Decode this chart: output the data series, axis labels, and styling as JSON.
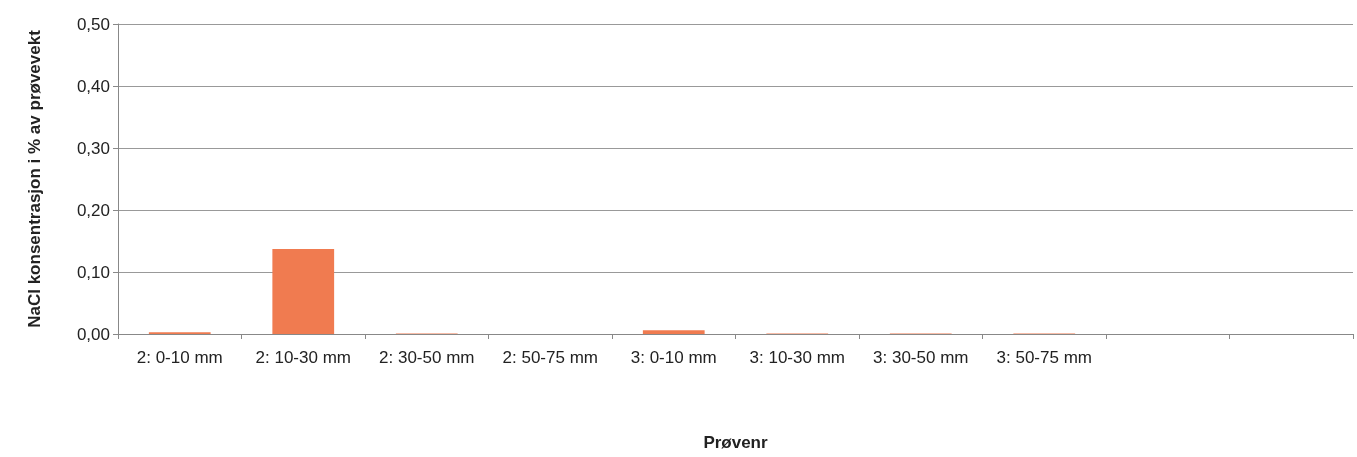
{
  "chart_data": {
    "type": "bar",
    "xlabel": "Prøvenr",
    "ylabel": "NaCl konsentrasjon i % av prøvevekt",
    "categories": [
      "2: 0-10 mm",
      "2: 10-30 mm",
      "2: 30-50 mm",
      "2: 50-75 mm",
      "3: 0-10 mm",
      "3: 10-30 mm",
      "3: 30-50 mm",
      "3: 50-75 mm",
      null,
      null
    ],
    "values": [
      0.003,
      0.137,
      0.001,
      0,
      0.006,
      0.001,
      0.001,
      0.001,
      null,
      null
    ],
    "color": "#f07b50",
    "ylim": [
      0,
      0.5
    ],
    "yticks": [
      {
        "value": 0,
        "label": "0,00"
      },
      {
        "value": 0.1,
        "label": "0,10"
      },
      {
        "value": 0.2,
        "label": "0,20"
      },
      {
        "value": 0.3,
        "label": "0,30"
      },
      {
        "value": 0.4,
        "label": "0,40"
      },
      {
        "value": 0.5,
        "label": "0,50"
      }
    ],
    "grid": "y"
  }
}
